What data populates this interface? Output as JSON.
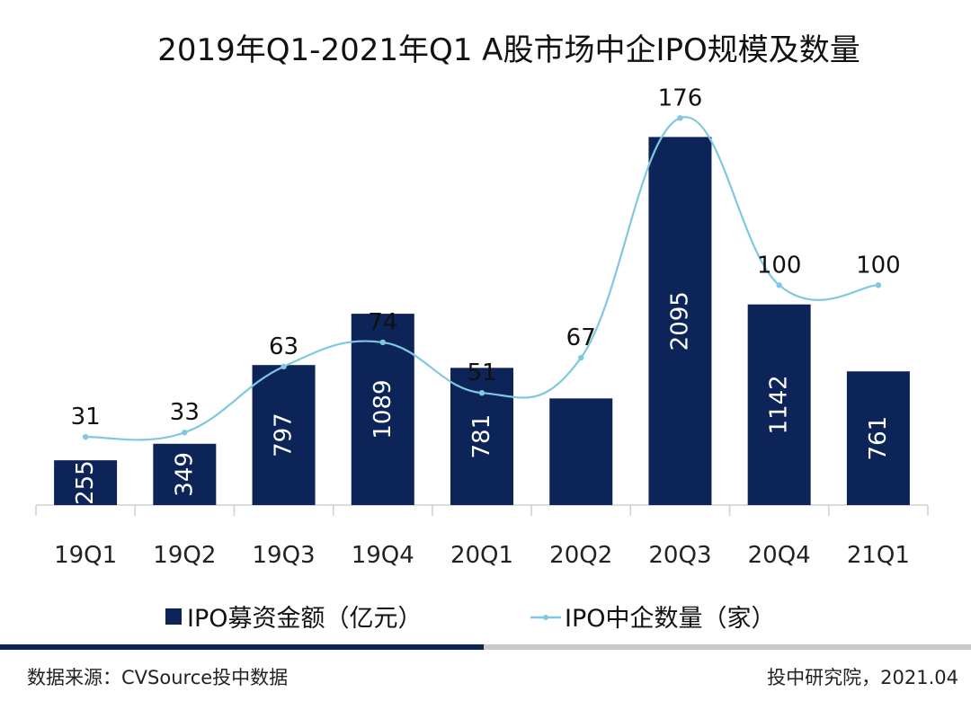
{
  "chart_data": {
    "type": "bar",
    "title": "2019年Q1-2021年Q1 A股市场中企IPO规模及数量",
    "categories": [
      "19Q1",
      "19Q2",
      "19Q3",
      "19Q4",
      "20Q1",
      "20Q2",
      "20Q3",
      "20Q4",
      "21Q1"
    ],
    "series": [
      {
        "name": "IPO募资金额（亿元）",
        "kind": "bar",
        "color": "#0d2459",
        "values": [
          255,
          349,
          797,
          1089,
          781,
          607,
          2095,
          1142,
          761
        ],
        "labels": [
          "255",
          "349",
          "797",
          "1089",
          "781",
          "",
          "2095",
          "1142",
          "761"
        ]
      },
      {
        "name": "IPO中企数量（家）",
        "kind": "line",
        "smooth": true,
        "color": "#7fc8e0",
        "values": [
          31,
          33,
          63,
          74,
          51,
          67,
          176,
          100,
          100
        ],
        "labels": [
          "31",
          "33",
          "63",
          "74",
          "51",
          "67",
          "176",
          "100",
          "100"
        ]
      }
    ],
    "legend_position": "bottom",
    "grid": false
  },
  "legend": {
    "bar_label": "IPO募资金额（亿元）",
    "line_label": "IPO中企数量（家）"
  },
  "footer": {
    "source": "数据来源：CVSource投中数据",
    "credit": "投中研究院，2021.04"
  },
  "colors": {
    "bar": "#0d2459",
    "line": "#7fc8e0",
    "divider_dark": "#0d2459",
    "divider_light": "#c8c8c8"
  }
}
